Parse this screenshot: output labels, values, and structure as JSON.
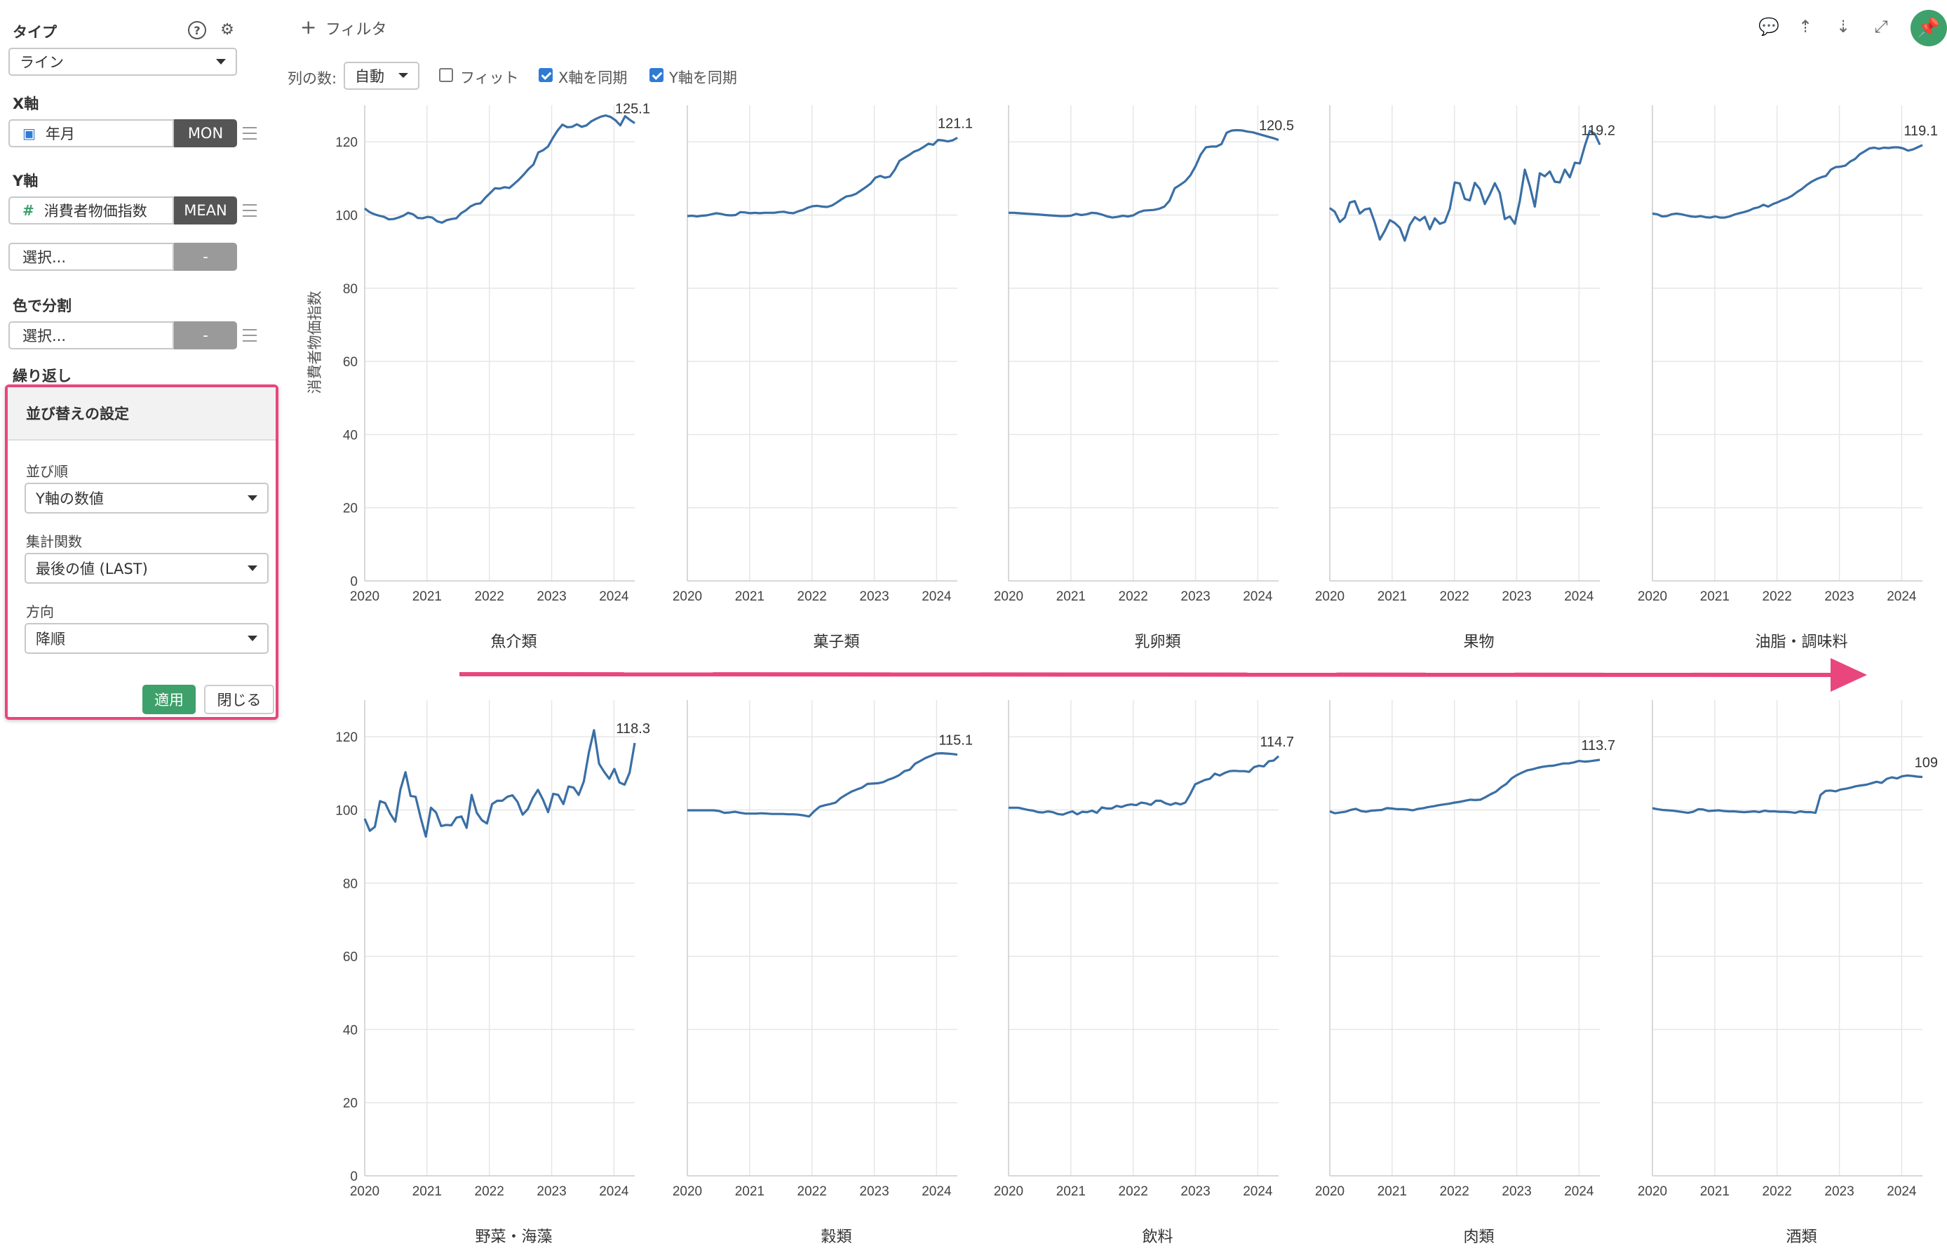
{
  "sidebar": {
    "type_label": "タイプ",
    "type_value": "ライン",
    "x_label": "X軸",
    "x_field": "年月",
    "x_tag": "MON",
    "y_label": "Y軸",
    "y_field": "消費者物価指数",
    "y_tag": "MEAN",
    "y2_placeholder": "選択...",
    "y2_tag": "-",
    "color_label": "色で分割",
    "color_placeholder": "選択...",
    "color_tag": "-",
    "repeat_label": "繰り返し"
  },
  "sort_popup": {
    "title": "並び替えの設定",
    "order_label": "並び順",
    "order_value": "Y軸の数値",
    "agg_label": "集計関数",
    "agg_value": "最後の値 (LAST)",
    "dir_label": "方向",
    "dir_value": "降順",
    "apply": "適用",
    "close": "閉じる"
  },
  "toolbar": {
    "filter": "フィルタ",
    "cols_label": "列の数:",
    "cols_value": "自動",
    "fit": "フィット",
    "sync_x": "X軸を同期",
    "sync_y": "Y軸を同期",
    "icons": [
      "comment-icon",
      "upload-icon",
      "download-icon",
      "expand-icon",
      "pin-icon"
    ]
  },
  "colors": {
    "line": "#3a6fa5",
    "accent": "#e8467c",
    "green": "#3ea06a"
  },
  "chart_data": {
    "type": "line",
    "ylabel": "消費者物価指数",
    "ylim": [
      0,
      130
    ],
    "yticks": [
      0,
      20,
      40,
      60,
      80,
      100,
      120
    ],
    "xticks": [
      "2020",
      "2021",
      "2022",
      "2023",
      "2024"
    ],
    "x_range": [
      "2020-01",
      "2024-05"
    ],
    "grid": true,
    "panels": [
      {
        "name": "魚介類",
        "last_label": "125.1",
        "values": [
          101.8,
          100.8,
          100.2,
          99.8,
          99.5,
          98.8,
          98.9,
          99.3,
          99.8,
          100.6,
          100.2,
          99.2,
          99.1,
          99.5,
          99.3,
          98.3,
          97.9,
          98.6,
          98.9,
          99.1,
          100.5,
          101.3,
          102.4,
          103,
          103.2,
          104.7,
          106,
          107.3,
          107.2,
          107.6,
          107.4,
          108.5,
          109.7,
          111.1,
          112.6,
          113.8,
          117.1,
          117.7,
          118.7,
          121,
          123.1,
          124.7,
          124,
          124.1,
          124.8,
          124.1,
          124.5,
          125.6,
          126.3,
          126.9,
          127.2,
          126.8,
          125.9,
          124.5,
          127,
          126,
          125.1
        ]
      },
      {
        "name": "菓子類",
        "last_label": "121.1",
        "values": [
          99.7,
          99.8,
          99.6,
          99.8,
          99.9,
          100.2,
          100.5,
          100.3,
          100,
          99.9,
          100,
          100.8,
          100.7,
          100.5,
          100.6,
          100.5,
          100.6,
          100.6,
          100.6,
          100.8,
          100.9,
          100.6,
          100.5,
          101,
          101.4,
          102,
          102.4,
          102.5,
          102.3,
          102.2,
          102.6,
          103.4,
          104.3,
          105.1,
          105.3,
          105.8,
          106.7,
          107.6,
          108.6,
          110.2,
          110.7,
          110.2,
          110.5,
          112.3,
          114.8,
          115.6,
          116.4,
          117.3,
          117.8,
          118.6,
          119.5,
          119.2,
          120.5,
          120.4,
          120.1,
          120.4,
          121.1
        ]
      },
      {
        "name": "乳卵類",
        "last_label": "120.5",
        "values": [
          100.6,
          100.6,
          100.5,
          100.4,
          100.3,
          100.2,
          100.1,
          100,
          99.9,
          99.8,
          99.7,
          99.7,
          99.8,
          100.3,
          100,
          100.2,
          100.6,
          100.5,
          100.1,
          99.6,
          99.3,
          99.5,
          99.8,
          99.6,
          99.9,
          100.7,
          101.2,
          101.3,
          101.4,
          101.7,
          102.3,
          103.9,
          107.3,
          108.2,
          109.2,
          110.8,
          113.3,
          116.5,
          118.5,
          118.7,
          118.7,
          119.4,
          122.5,
          123.1,
          123.2,
          123.1,
          122.8,
          122.6,
          122.2,
          121.8,
          121.4,
          121,
          120.5
        ]
      },
      {
        "name": "果物",
        "last_label": "119.2",
        "values": [
          101.9,
          100.9,
          98.1,
          99.3,
          103.4,
          103.8,
          100.4,
          101.5,
          101.8,
          97.9,
          93.3,
          95.7,
          98.6,
          97.8,
          96.5,
          93,
          97.3,
          99.4,
          98.5,
          99.5,
          96.1,
          99.1,
          97.6,
          98.1,
          101.7,
          108.9,
          108.6,
          104.4,
          104,
          108.8,
          107.1,
          103,
          105.6,
          108.7,
          106,
          98.9,
          99.6,
          97.6,
          103.8,
          112.4,
          107.9,
          102.3,
          111.4,
          110.6,
          111.9,
          109.1,
          108.9,
          112.4,
          110.3,
          114.3,
          114.1,
          118.9,
          123,
          122.2,
          119.2
        ]
      },
      {
        "name": "油脂・調味料",
        "last_label": "119.1",
        "values": [
          100.4,
          100.2,
          99.6,
          99.7,
          100.2,
          100.4,
          100.2,
          99.9,
          99.6,
          99.5,
          99.7,
          99.4,
          99.3,
          99.6,
          99.3,
          99.3,
          99.6,
          100.1,
          100.5,
          100.8,
          101.2,
          101.8,
          102.1,
          102.8,
          102.3,
          103,
          103.5,
          104.1,
          104.6,
          105.3,
          106.3,
          107.1,
          108.2,
          109.1,
          109.8,
          110.3,
          110.7,
          112.4,
          113.1,
          113.2,
          113.5,
          114.6,
          115.3,
          116.6,
          117.4,
          118.2,
          118.4,
          118.1,
          118.4,
          118.3,
          118.5,
          118.5,
          118.2,
          117.6,
          117.9,
          118.5,
          119.1
        ]
      },
      {
        "name": "野菜・海藻",
        "last_label": "118.3",
        "values": [
          97.6,
          94.3,
          95.4,
          102.4,
          101.9,
          99,
          96.8,
          105.5,
          110.3,
          103.8,
          103.6,
          97.8,
          92.7,
          100.6,
          99.3,
          95.6,
          95.9,
          95.8,
          97.9,
          98.2,
          95.1,
          104.1,
          99.2,
          97.2,
          96.3,
          101.6,
          102.5,
          102.5,
          103.6,
          104,
          102.2,
          98.7,
          100.2,
          103.3,
          105.5,
          102.8,
          99.4,
          104.4,
          104.1,
          101.6,
          106.4,
          106.1,
          104.1,
          107.8,
          115.7,
          121.8,
          112.6,
          110.4,
          108.5,
          111.2,
          107.5,
          106.9,
          110.2,
          118.3
        ]
      },
      {
        "name": "穀類",
        "last_label": "115.1",
        "values": [
          99.9,
          99.9,
          99.9,
          99.9,
          99.9,
          99.9,
          99.7,
          99.2,
          99.3,
          99.5,
          99.2,
          99,
          99,
          99,
          99.1,
          99,
          98.9,
          98.9,
          98.9,
          98.8,
          98.8,
          98.7,
          98.5,
          98.2,
          99.7,
          100.9,
          101.3,
          101.6,
          102,
          103.3,
          104.2,
          105,
          105.6,
          106.1,
          107.1,
          107.2,
          107.3,
          107.6,
          108.3,
          108.8,
          109.5,
          110.6,
          111,
          112.6,
          113.4,
          114.2,
          114.8,
          115.4,
          115.5,
          115.4,
          115.3,
          115.1
        ]
      },
      {
        "name": "飲料",
        "last_label": "114.7",
        "values": [
          100.6,
          100.6,
          100.6,
          100.3,
          100,
          99.8,
          99.4,
          99.3,
          99.6,
          99.4,
          98.9,
          98.7,
          99.2,
          99.6,
          98.8,
          99.5,
          99.4,
          99.8,
          99.2,
          100.7,
          100.4,
          100.4,
          101.1,
          100.8,
          101.3,
          101.5,
          101.3,
          102,
          101.8,
          101.4,
          102.5,
          102.5,
          101.8,
          101.4,
          101.9,
          101.5,
          102,
          104.3,
          107,
          107.6,
          108.2,
          108.5,
          109.9,
          109.4,
          110.1,
          110.6,
          110.7,
          110.6,
          110.6,
          110.4,
          111.7,
          112.1,
          111.9,
          113.3,
          113.5,
          114.7
        ]
      },
      {
        "name": "肉類",
        "last_label": "113.7",
        "values": [
          99.6,
          99.1,
          99.3,
          99.5,
          100,
          100.3,
          99.7,
          99.5,
          99.8,
          99.9,
          100,
          100.5,
          100.4,
          100.2,
          100.2,
          100.1,
          99.9,
          100.3,
          100.5,
          100.8,
          101,
          101.3,
          101.5,
          101.7,
          102,
          102.2,
          102.5,
          102.8,
          102.7,
          102.8,
          103.5,
          104.3,
          105,
          106.2,
          107.1,
          108.6,
          109.5,
          110.2,
          110.8,
          111.1,
          111.5,
          111.8,
          112,
          112.1,
          112.4,
          112.7,
          112.7,
          113,
          113.4,
          113.2,
          113.3,
          113.5,
          113.7
        ]
      },
      {
        "name": "酒類",
        "last_label": "109",
        "values": [
          100.5,
          100.2,
          100,
          99.9,
          99.8,
          99.6,
          99.4,
          99.2,
          99.5,
          100.2,
          100.1,
          99.7,
          99.8,
          99.9,
          99.7,
          99.6,
          99.6,
          99.5,
          99.4,
          99.5,
          99.6,
          99.4,
          99.8,
          99.6,
          99.6,
          99.5,
          99.5,
          99.4,
          99.2,
          99.6,
          99.4,
          99.4,
          99.2,
          104.1,
          105.2,
          105.3,
          105.1,
          105.6,
          105.8,
          106.1,
          106.5,
          106.7,
          106.9,
          107.3,
          107.7,
          107.4,
          108.5,
          108.9,
          108.6,
          109.2,
          109.4,
          109.3,
          109.1,
          109
        ]
      }
    ]
  }
}
